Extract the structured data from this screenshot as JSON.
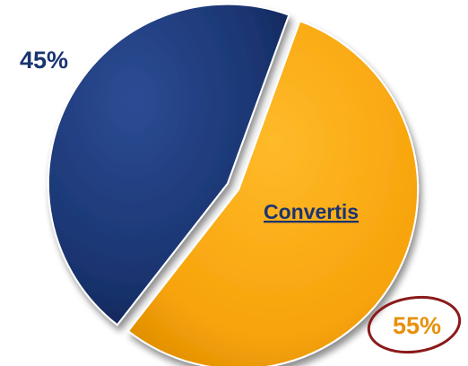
{
  "chart_data": {
    "type": "pie",
    "slices": [
      {
        "label": "",
        "value": 45,
        "value_label": "45%",
        "color": "#1a3470"
      },
      {
        "label": "Convertis",
        "value": 55,
        "value_label": "55%",
        "color": "#f7a30a"
      }
    ],
    "label_colors": {
      "dark": "#1a3470",
      "orange": "#e8900a",
      "callout_ring": "#8a1a1a"
    },
    "legend": "none",
    "exploded": true
  }
}
